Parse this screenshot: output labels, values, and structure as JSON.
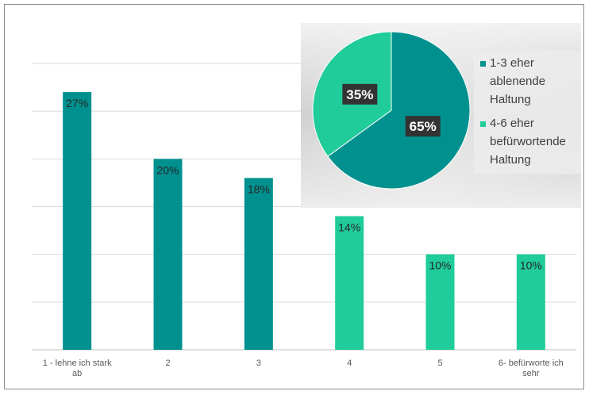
{
  "chart_data": [
    {
      "type": "bar",
      "categories": [
        "1 - lehne ich stark ab",
        "2",
        "3",
        "4",
        "5",
        "6- befürworte ich sehr"
      ],
      "category_lines": [
        [
          "1 - lehne ich stark",
          "ab"
        ],
        [
          "2"
        ],
        [
          "3"
        ],
        [
          "4"
        ],
        [
          "5"
        ],
        [
          "6- befürworte ich",
          "sehr"
        ]
      ],
      "values": [
        27,
        20,
        18,
        14,
        10,
        10
      ],
      "value_labels": [
        "27%",
        "20%",
        "18%",
        "14%",
        "10%",
        "10%"
      ],
      "bar_colors": [
        "#00918f",
        "#00918f",
        "#00918f",
        "#1fcc9a",
        "#1fcc9a",
        "#1fcc9a"
      ],
      "ylim": [
        0,
        30
      ],
      "grid": true,
      "title": "",
      "xlabel": "",
      "ylabel": ""
    },
    {
      "type": "pie",
      "slices": [
        {
          "label": "1-3 eher ablenende Haltung",
          "legend_lines": [
            "1-3 eher",
            "ablenende",
            "Haltung"
          ],
          "value": 65,
          "value_label": "65%",
          "color": "#00918f"
        },
        {
          "label": "4-6 eher befürwortende Haltung",
          "legend_lines": [
            "4-6 eher",
            "befürwortende",
            "Haltung"
          ],
          "value": 35,
          "value_label": "35%",
          "color": "#1fcc9a"
        }
      ],
      "legend_placement": "right",
      "title": ""
    }
  ],
  "colors": {
    "teal": "#00918f",
    "mint": "#1fcc9a",
    "grid": "#d9d9d9",
    "axis_text": "#595959"
  }
}
